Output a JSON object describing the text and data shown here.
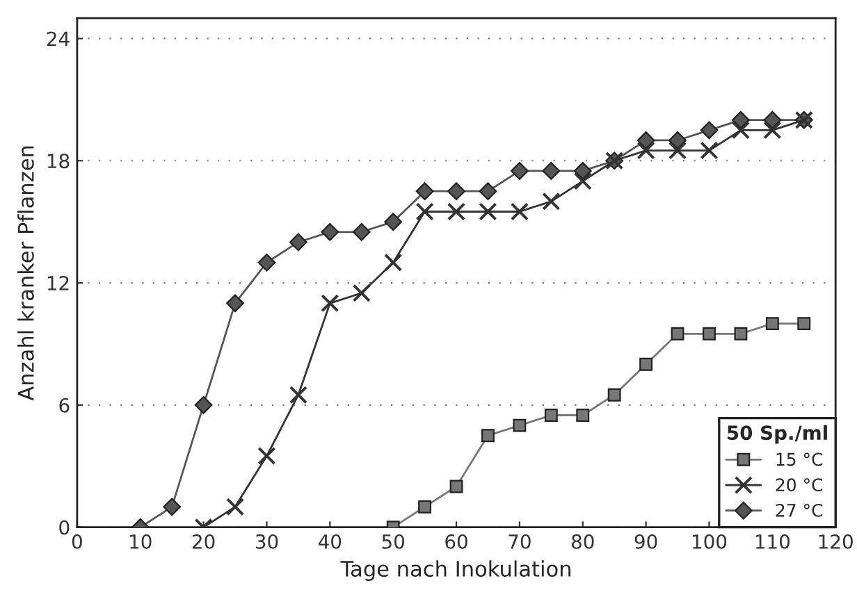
{
  "chart_data": {
    "type": "line",
    "xlabel": "Tage nach Inokulation",
    "ylabel": "Anzahl kranker Pflanzen",
    "legend_title": "50 Sp./ml",
    "legend": "bottom right",
    "grid": "y",
    "line_style": "solid",
    "xlim": [
      0,
      120
    ],
    "xticks": [
      0,
      10,
      20,
      30,
      40,
      50,
      60,
      70,
      80,
      90,
      100,
      110,
      120
    ],
    "ylim": [
      0,
      25
    ],
    "yticks": [
      0,
      6,
      12,
      18,
      24
    ],
    "series": [
      {
        "name": "15 °C",
        "color": "#777777",
        "marker": "square",
        "x": [
          50,
          55,
          60,
          65,
          70,
          75,
          80,
          85,
          90,
          95,
          100,
          105,
          110,
          115
        ],
        "values": [
          0,
          1,
          2,
          4.5,
          5,
          5.5,
          5.5,
          6.5,
          8,
          9.5,
          9.5,
          9.5,
          10,
          10
        ]
      },
      {
        "name": "20 °C",
        "color": "#333333",
        "marker": "cross",
        "x": [
          20,
          25,
          30,
          35,
          40,
          45,
          50,
          55,
          60,
          65,
          70,
          75,
          80,
          85,
          90,
          95,
          100,
          105,
          110,
          115
        ],
        "values": [
          0,
          1,
          3.5,
          6.5,
          11,
          11.5,
          13,
          15.5,
          15.5,
          15.5,
          15.5,
          16,
          17,
          18,
          18.5,
          18.5,
          18.5,
          19.5,
          19.5,
          20
        ]
      },
      {
        "name": "27 °C",
        "color": "#555555",
        "marker": "diamond",
        "x": [
          10,
          15,
          20,
          25,
          30,
          35,
          40,
          45,
          50,
          55,
          60,
          65,
          70,
          75,
          80,
          85,
          90,
          95,
          100,
          105,
          110,
          115
        ],
        "values": [
          0,
          1,
          6,
          11,
          13,
          14,
          14.5,
          14.5,
          15,
          16.5,
          16.5,
          16.5,
          17.5,
          17.5,
          17.5,
          18,
          19,
          19,
          19.5,
          20,
          20,
          20
        ]
      }
    ]
  }
}
